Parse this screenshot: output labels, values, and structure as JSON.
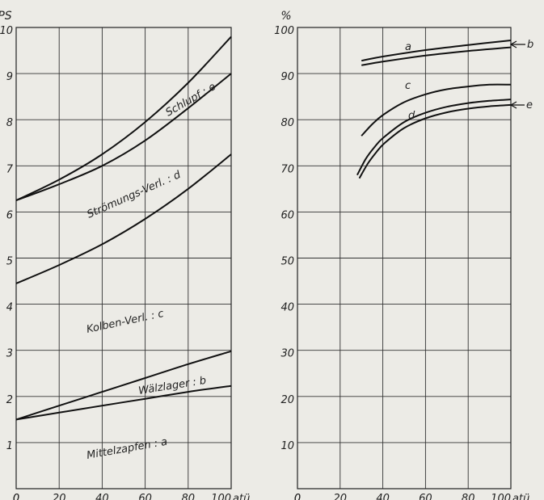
{
  "chart_data": [
    {
      "type": "line",
      "ylabel": "PS",
      "x_unit": "atü",
      "xlim": [
        0,
        100
      ],
      "ylim": [
        0,
        10
      ],
      "x_ticks": [
        "0",
        "20",
        "40",
        "60",
        "80",
        "100"
      ],
      "y_ticks": [
        "1",
        "2",
        "3",
        "4",
        "5",
        "6",
        "7",
        "8",
        "9",
        "10"
      ],
      "series": [
        {
          "x": [
            0,
            20,
            40,
            60,
            80,
            100
          ],
          "y": [
            1.5,
            1.65,
            1.8,
            1.95,
            2.1,
            2.23
          ]
        },
        {
          "x": [
            0,
            20,
            40,
            60,
            80,
            100
          ],
          "y": [
            1.5,
            1.8,
            2.1,
            2.4,
            2.7,
            2.98
          ]
        },
        {
          "x": [
            0,
            20,
            40,
            60,
            80,
            100
          ],
          "y": [
            4.45,
            4.85,
            5.3,
            5.85,
            6.5,
            7.25
          ]
        },
        {
          "x": [
            0,
            20,
            40,
            60,
            80,
            100
          ],
          "y": [
            6.25,
            6.6,
            7.0,
            7.55,
            8.25,
            9.0
          ]
        },
        {
          "x": [
            0,
            20,
            40,
            60,
            80,
            100
          ],
          "y": [
            6.25,
            6.7,
            7.25,
            7.95,
            8.8,
            9.8
          ]
        }
      ],
      "annotations": [
        {
          "id": "a",
          "text": "Mittelzapfen : a"
        },
        {
          "id": "b",
          "text": "Wälzlager : b"
        },
        {
          "id": "c",
          "text": "Kolben-Verl. : c"
        },
        {
          "id": "d",
          "text": "Strömungs-Verl. : d"
        },
        {
          "id": "e",
          "text": "Schlupf : e"
        }
      ]
    },
    {
      "type": "line",
      "ylabel": "%",
      "x_unit": "atü",
      "xlim": [
        0,
        100
      ],
      "ylim": [
        0,
        100
      ],
      "x_ticks": [
        "0",
        "20",
        "40",
        "60",
        "80",
        "100"
      ],
      "y_ticks": [
        "10",
        "20",
        "30",
        "40",
        "50",
        "60",
        "70",
        "80",
        "90",
        "100"
      ],
      "series": [
        {
          "name": "a",
          "x": [
            30,
            40,
            60,
            80,
            100
          ],
          "y": [
            92.8,
            93.7,
            95.1,
            96.2,
            97.2
          ]
        },
        {
          "name": "b",
          "x": [
            30,
            40,
            60,
            80,
            100
          ],
          "y": [
            91.8,
            92.6,
            93.9,
            94.9,
            95.7
          ]
        },
        {
          "name": "c",
          "x": [
            30,
            35,
            40,
            50,
            60,
            70,
            80,
            90,
            100
          ],
          "y": [
            76.5,
            79,
            81,
            83.8,
            85.5,
            86.6,
            87.2,
            87.6,
            87.6
          ]
        },
        {
          "name": "d",
          "x": [
            28,
            32,
            36,
            40,
            50,
            60,
            70,
            80,
            90,
            100
          ],
          "y": [
            68,
            71.5,
            74,
            76,
            79.5,
            81.5,
            82.8,
            83.6,
            84.1,
            84.4
          ]
        },
        {
          "name": "e",
          "x": [
            29,
            33,
            37,
            41,
            50,
            60,
            70,
            80,
            90,
            100
          ],
          "y": [
            67.3,
            70.5,
            73,
            75,
            78.2,
            80.3,
            81.6,
            82.4,
            82.9,
            83.2
          ]
        }
      ],
      "annotations": [
        {
          "id": "a",
          "text": "a"
        },
        {
          "id": "b",
          "text": "b"
        },
        {
          "id": "c",
          "text": "c"
        },
        {
          "id": "d",
          "text": "d"
        },
        {
          "id": "e",
          "text": "e"
        }
      ]
    }
  ]
}
